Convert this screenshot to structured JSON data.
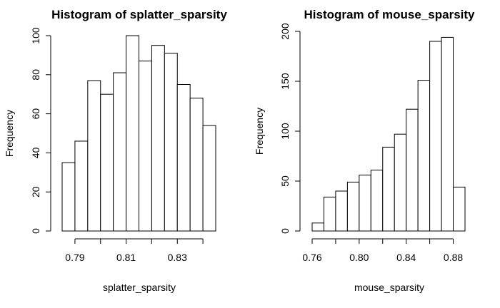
{
  "chart_data": [
    {
      "type": "bar",
      "title": "Histogram of splatter_sparsity",
      "xlabel": "splatter_sparsity",
      "ylabel": "Frequency",
      "bin_edges": [
        0.785,
        0.79,
        0.795,
        0.8,
        0.805,
        0.81,
        0.815,
        0.82,
        0.825,
        0.83,
        0.835,
        0.84,
        0.845
      ],
      "values": [
        35,
        46,
        77,
        70,
        81,
        100,
        87,
        95,
        91,
        75,
        68,
        54
      ],
      "xlim": [
        0.79,
        0.84
      ],
      "x_ticks": [
        0.79,
        0.8,
        0.81,
        0.82,
        0.83,
        0.84
      ],
      "x_tick_labels": [
        "0.79",
        "",
        "0.81",
        "",
        "0.83",
        ""
      ],
      "ylim": [
        0,
        100
      ],
      "y_ticks": [
        0,
        20,
        40,
        60,
        80,
        100
      ],
      "y_tick_labels": [
        "0",
        "20",
        "40",
        "60",
        "80",
        "100"
      ],
      "grid": false
    },
    {
      "type": "bar",
      "title": "Histogram of mouse_sparsity",
      "xlabel": "mouse_sparsity",
      "ylabel": "Frequency",
      "bin_edges": [
        0.76,
        0.77,
        0.78,
        0.79,
        0.8,
        0.81,
        0.82,
        0.83,
        0.84,
        0.85,
        0.86,
        0.87,
        0.88,
        0.89
      ],
      "values": [
        8,
        34,
        40,
        49,
        56,
        61,
        84,
        97,
        122,
        151,
        190,
        194,
        44
      ],
      "xlim": [
        0.76,
        0.88
      ],
      "x_ticks": [
        0.76,
        0.78,
        0.8,
        0.82,
        0.84,
        0.86,
        0.88
      ],
      "x_tick_labels": [
        "0.76",
        "",
        "0.80",
        "",
        "0.84",
        "",
        "0.88"
      ],
      "ylim": [
        0,
        200
      ],
      "y_ticks": [
        0,
        50,
        100,
        150,
        200
      ],
      "y_tick_labels": [
        "0",
        "50",
        "100",
        "150",
        "200"
      ],
      "grid": false
    }
  ]
}
